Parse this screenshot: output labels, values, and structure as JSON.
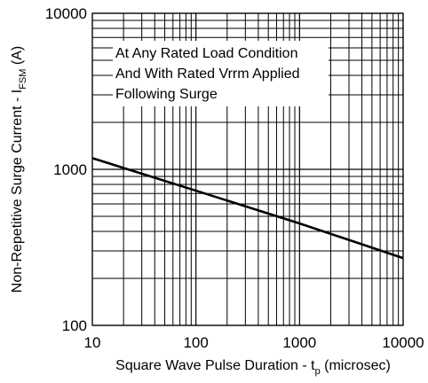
{
  "chart_data": {
    "type": "line",
    "x_scale": "log",
    "y_scale": "log",
    "xlim": [
      10,
      10000
    ],
    "ylim": [
      100,
      10000
    ],
    "grid": true,
    "xticks": [
      10,
      100,
      1000,
      10000
    ],
    "yticks": [
      100,
      1000,
      10000
    ],
    "x_tick_labels": [
      "10",
      "100",
      "1000",
      "10000"
    ],
    "y_tick_labels": [
      "100",
      "1000",
      "10000"
    ],
    "xlabel_main": "Square Wave Pulse Duration - t",
    "xlabel_sub": "p",
    "xlabel_tail": " (microsec)",
    "ylabel_main": "Non-Repetitive Surge Current - I",
    "ylabel_sub": "FSM",
    "ylabel_tail": " (A)",
    "annotation": [
      "At Any Rated Load Condition",
      "And With Rated Vrrm Applied",
      "Following Surge"
    ],
    "series": [
      {
        "x": [
          10,
          100,
          1000,
          10000
        ],
        "y": [
          1180,
          730,
          450,
          270
        ]
      }
    ],
    "line_color": "#000000"
  }
}
